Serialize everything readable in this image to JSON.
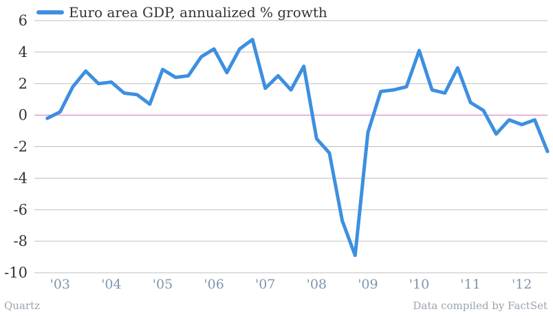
{
  "footer": {
    "source_left": "Quartz",
    "source_right": "Data compiled by FactSet"
  },
  "chart_data": {
    "type": "line",
    "title": "",
    "xlabel": "",
    "ylabel": "",
    "ylim": [
      -10,
      6
    ],
    "yticks": [
      -10,
      -8,
      -6,
      -4,
      -2,
      0,
      2,
      4,
      6
    ],
    "ytick_labels": [
      "-10",
      "-8",
      "-6",
      "-4",
      "-2",
      "0",
      "2",
      "4",
      "6"
    ],
    "xticks": [
      {
        "label": "'03",
        "x": 2003.25
      },
      {
        "label": "'04",
        "x": 2004.25
      },
      {
        "label": "'05",
        "x": 2005.25
      },
      {
        "label": "'06",
        "x": 2006.25
      },
      {
        "label": "'07",
        "x": 2007.25
      },
      {
        "label": "'08",
        "x": 2008.25
      },
      {
        "label": "'09",
        "x": 2009.25
      },
      {
        "label": "'10",
        "x": 2010.25
      },
      {
        "label": "'11",
        "x": 2011.25
      },
      {
        "label": "'12",
        "x": 2012.25
      }
    ],
    "xlim": [
      2002.75,
      2012.75
    ],
    "grid": true,
    "legend_position": "top-left",
    "zero_line_color": "#d36fc6",
    "series": [
      {
        "name": "Euro area GDP, annualized % growth",
        "color": "#3d8fe0",
        "x": [
          2003.0,
          2003.25,
          2003.5,
          2003.75,
          2004.0,
          2004.25,
          2004.5,
          2004.75,
          2005.0,
          2005.25,
          2005.5,
          2005.75,
          2006.0,
          2006.25,
          2006.5,
          2006.75,
          2007.0,
          2007.25,
          2007.5,
          2007.75,
          2008.0,
          2008.25,
          2008.5,
          2008.75,
          2009.0,
          2009.25,
          2009.5,
          2009.75,
          2010.0,
          2010.25,
          2010.5,
          2010.75,
          2011.0,
          2011.25,
          2011.5,
          2011.75,
          2012.0,
          2012.25,
          2012.5,
          2012.75
        ],
        "values": [
          -0.2,
          0.2,
          1.8,
          2.8,
          2.0,
          2.1,
          1.4,
          1.3,
          0.7,
          2.9,
          2.4,
          2.5,
          3.7,
          4.2,
          2.7,
          4.2,
          4.8,
          1.7,
          2.5,
          1.6,
          3.1,
          -1.5,
          -2.4,
          -6.7,
          -8.9,
          -1.1,
          1.5,
          1.6,
          1.8,
          4.1,
          1.6,
          1.4,
          3.0,
          0.8,
          0.3,
          -1.2,
          -0.3,
          -0.6,
          -0.3,
          -2.3
        ]
      }
    ]
  }
}
